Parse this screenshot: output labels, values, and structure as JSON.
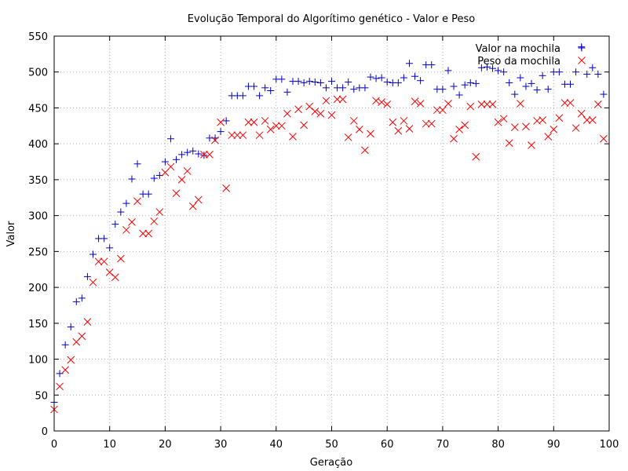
{
  "chart_data": {
    "type": "scatter",
    "title": "Evolução Temporal do Algorítimo genético - Valor e Peso",
    "xlabel": "Geração",
    "ylabel": "Valor",
    "xlim": [
      0,
      100
    ],
    "ylim": [
      0,
      550
    ],
    "xticks": [
      0,
      10,
      20,
      30,
      40,
      50,
      60,
      70,
      80,
      90,
      100
    ],
    "yticks": [
      0,
      50,
      100,
      150,
      200,
      250,
      300,
      350,
      400,
      450,
      500,
      550
    ],
    "grid": true,
    "legend": "top-right",
    "series": [
      {
        "name": "Valor na mochila",
        "marker": "plus",
        "color": "#0000cc",
        "x": [
          0,
          1,
          2,
          3,
          4,
          5,
          6,
          7,
          8,
          9,
          10,
          11,
          12,
          13,
          14,
          15,
          16,
          17,
          18,
          19,
          20,
          21,
          22,
          23,
          24,
          25,
          26,
          27,
          28,
          29,
          30,
          31,
          32,
          33,
          34,
          35,
          36,
          37,
          38,
          39,
          40,
          41,
          42,
          43,
          44,
          45,
          46,
          47,
          48,
          49,
          50,
          51,
          52,
          53,
          54,
          55,
          56,
          57,
          58,
          59,
          60,
          61,
          62,
          63,
          64,
          65,
          66,
          67,
          68,
          69,
          70,
          71,
          72,
          73,
          74,
          75,
          76,
          77,
          78,
          79,
          80,
          81,
          82,
          83,
          84,
          85,
          86,
          87,
          88,
          89,
          90,
          91,
          92,
          93,
          94,
          95,
          96,
          97,
          98,
          99
        ],
        "y": [
          40,
          80,
          120,
          145,
          180,
          185,
          215,
          246,
          268,
          268,
          255,
          288,
          305,
          317,
          351,
          372,
          330,
          330,
          352,
          356,
          375,
          407,
          378,
          385,
          388,
          390,
          386,
          384,
          408,
          408,
          417,
          432,
          467,
          467,
          467,
          480,
          480,
          467,
          478,
          474,
          490,
          490,
          472,
          487,
          487,
          485,
          487,
          486,
          485,
          478,
          487,
          478,
          478,
          486,
          476,
          478,
          478,
          493,
          491,
          492,
          486,
          485,
          485,
          492,
          512,
          494,
          488,
          510,
          510,
          476,
          476,
          502,
          480,
          468,
          482,
          485,
          484,
          506,
          507,
          505,
          502,
          500,
          485,
          469,
          492,
          480,
          484,
          475,
          495,
          476,
          500,
          500,
          483,
          483,
          500,
          535,
          497,
          506,
          497,
          469
        ]
      },
      {
        "name": "Peso da mochila",
        "marker": "cross",
        "color": "#ff0000",
        "x": [
          0,
          1,
          2,
          3,
          4,
          5,
          6,
          7,
          8,
          9,
          10,
          11,
          12,
          13,
          14,
          15,
          16,
          17,
          18,
          19,
          20,
          21,
          22,
          23,
          24,
          25,
          26,
          27,
          28,
          29,
          30,
          31,
          32,
          33,
          34,
          35,
          36,
          37,
          38,
          39,
          40,
          41,
          42,
          43,
          44,
          45,
          46,
          47,
          48,
          49,
          50,
          51,
          52,
          53,
          54,
          55,
          56,
          57,
          58,
          59,
          60,
          61,
          62,
          63,
          64,
          65,
          66,
          67,
          68,
          69,
          70,
          71,
          72,
          73,
          74,
          75,
          76,
          77,
          78,
          79,
          80,
          81,
          82,
          83,
          84,
          85,
          86,
          87,
          88,
          89,
          90,
          91,
          92,
          93,
          94,
          95,
          96,
          97,
          98,
          99
        ],
        "y": [
          30,
          62,
          85,
          99,
          124,
          132,
          152,
          207,
          236,
          236,
          221,
          214,
          240,
          280,
          291,
          320,
          275,
          275,
          292,
          305,
          360,
          368,
          331,
          350,
          362,
          313,
          322,
          385,
          385,
          405,
          430,
          338,
          412,
          412,
          412,
          430,
          430,
          412,
          432,
          420,
          425,
          425,
          442,
          410,
          448,
          426,
          452,
          445,
          442,
          460,
          440,
          462,
          462,
          409,
          432,
          420,
          391,
          414,
          460,
          458,
          455,
          430,
          418,
          432,
          421,
          459,
          456,
          428,
          428,
          447,
          447,
          456,
          407,
          420,
          426,
          452,
          382,
          455,
          455,
          455,
          430,
          435,
          401,
          423,
          456,
          424,
          398,
          432,
          433,
          410,
          420,
          436,
          457,
          457,
          422,
          442,
          433,
          433,
          455,
          407
        ]
      }
    ]
  }
}
